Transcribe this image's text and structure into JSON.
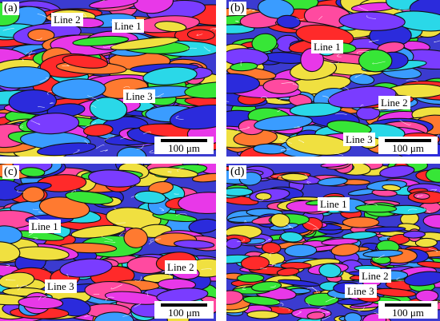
{
  "panels": [
    {
      "label": "(a)",
      "lines": [
        "Line 1",
        "Line 2",
        "Line 3"
      ],
      "scale_bar": "100 μm"
    },
    {
      "label": "(b)",
      "lines": [
        "Line 1",
        "Line 2",
        "Line 3"
      ],
      "scale_bar": "100 μm"
    },
    {
      "label": "(c)",
      "lines": [
        "Line 1",
        "Line 2",
        "Line 3"
      ],
      "scale_bar": "100 μm"
    },
    {
      "label": "(d)",
      "lines": [
        "Line 1",
        "Line 2",
        "Line 3"
      ],
      "scale_bar": "100 μm"
    }
  ],
  "grain_colors": [
    "#ff2a2a",
    "#2b2bdc",
    "#37e637",
    "#e838e8",
    "#2ad8e8",
    "#f0e040",
    "#ff7a30",
    "#7a3cff",
    "#3a9cff",
    "#ff4aa0"
  ]
}
